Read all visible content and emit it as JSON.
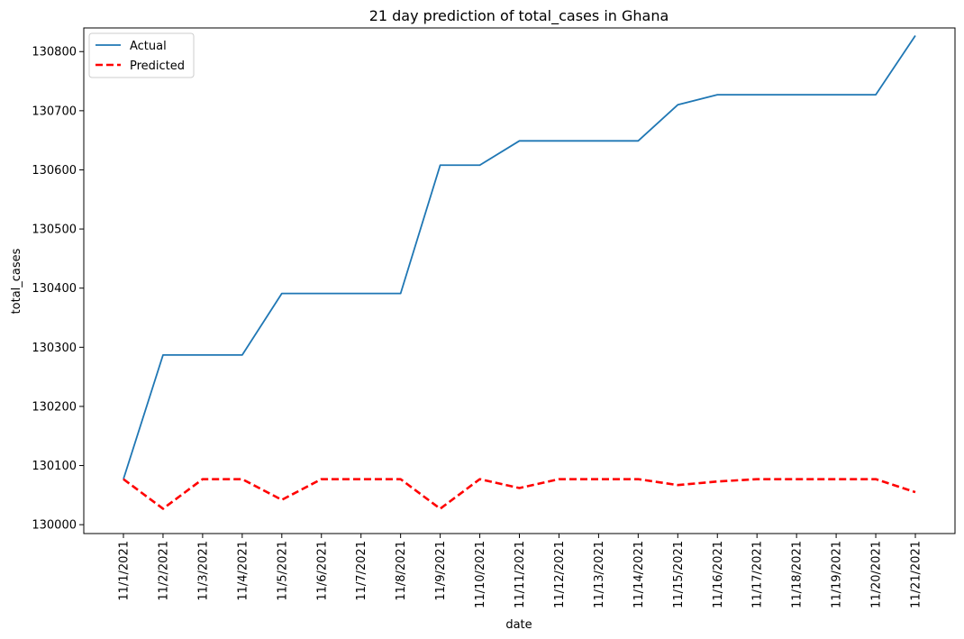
{
  "chart_data": {
    "type": "line",
    "title": "21 day prediction of total_cases in Ghana",
    "xlabel": "date",
    "ylabel": "total_cases",
    "x": [
      "11/1/2021",
      "11/2/2021",
      "11/3/2021",
      "11/4/2021",
      "11/5/2021",
      "11/6/2021",
      "11/7/2021",
      "11/8/2021",
      "11/9/2021",
      "11/10/2021",
      "11/11/2021",
      "11/12/2021",
      "11/13/2021",
      "11/14/2021",
      "11/15/2021",
      "11/16/2021",
      "11/17/2021",
      "11/18/2021",
      "11/19/2021",
      "11/20/2021",
      "11/21/2021"
    ],
    "yticks": [
      130000,
      130100,
      130200,
      130300,
      130400,
      130500,
      130600,
      130700,
      130800
    ],
    "ylim": [
      129985,
      130840
    ],
    "grid": false,
    "legend_position": "upper-left",
    "series": [
      {
        "name": "Actual",
        "color": "#1f77b4",
        "style": "solid",
        "values": [
          130077,
          130287,
          130287,
          130287,
          130391,
          130391,
          130391,
          130391,
          130608,
          130608,
          130649,
          130649,
          130649,
          130649,
          130710,
          130727,
          130727,
          130727,
          130727,
          130727,
          130827
        ]
      },
      {
        "name": "Predicted",
        "color": "#ff0000",
        "style": "dashed",
        "values": [
          130077,
          130027,
          130077,
          130077,
          130042,
          130077,
          130077,
          130077,
          130027,
          130077,
          130062,
          130077,
          130077,
          130077,
          130067,
          130073,
          130077,
          130077,
          130077,
          130077,
          130055
        ]
      }
    ]
  }
}
